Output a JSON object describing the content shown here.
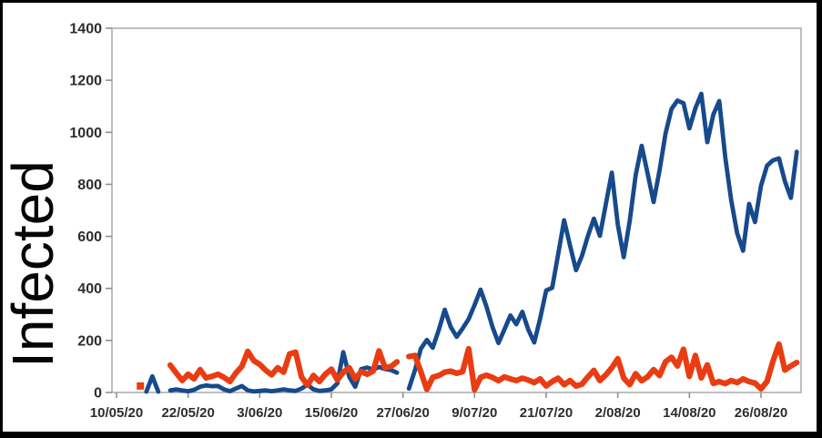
{
  "figure": {
    "background": "#ffffff",
    "border_color": "#000000"
  },
  "chart_data": {
    "type": "line",
    "title": "",
    "xlabel": "",
    "ylabel": "Infected",
    "ylim": [
      0,
      1400
    ],
    "y_ticks": [
      0,
      200,
      400,
      600,
      800,
      1000,
      1200,
      1400
    ],
    "x_tick_labels": [
      "10/05/20",
      "22/05/20",
      "3/06/20",
      "15/06/20",
      "27/06/20",
      "9/07/20",
      "21/07/20",
      "2/08/20",
      "14/08/20",
      "26/08/20"
    ],
    "x_tick_days": [
      0,
      12,
      24,
      36,
      48,
      60,
      72,
      84,
      96,
      108
    ],
    "x_day_range": [
      0,
      115
    ],
    "grid": false,
    "legend_position": "none",
    "style_colors": {
      "frame": "#aeaeae",
      "tick": "#8f8f8f",
      "tick_text": "#2d2d2d"
    },
    "series": [
      {
        "name": "blue-series",
        "color": "#174a8c",
        "stroke_width": 4.8,
        "segments": [
          [
            [
              5,
              3
            ],
            [
              6,
              62
            ],
            [
              7,
              3
            ]
          ],
          [
            [
              9,
              8
            ],
            [
              10,
              12
            ],
            [
              11,
              8
            ],
            [
              12,
              5
            ],
            [
              13,
              10
            ],
            [
              14,
              22
            ],
            [
              15,
              27
            ],
            [
              16,
              24
            ],
            [
              17,
              25
            ],
            [
              18,
              12
            ],
            [
              19,
              5
            ],
            [
              20,
              15
            ],
            [
              21,
              25
            ],
            [
              22,
              8
            ],
            [
              23,
              4
            ],
            [
              24,
              6
            ],
            [
              25,
              8
            ],
            [
              26,
              5
            ],
            [
              27,
              8
            ],
            [
              28,
              12
            ],
            [
              29,
              8
            ],
            [
              30,
              6
            ],
            [
              31,
              15
            ],
            [
              32,
              30
            ],
            [
              33,
              12
            ],
            [
              34,
              6
            ],
            [
              35,
              8
            ],
            [
              36,
              12
            ],
            [
              37,
              35
            ],
            [
              38,
              155
            ],
            [
              39,
              60
            ],
            [
              40,
              22
            ],
            [
              41,
              90
            ],
            [
              42,
              96
            ],
            [
              43,
              88
            ],
            [
              44,
              98
            ],
            [
              45,
              90
            ],
            [
              46,
              86
            ],
            [
              47,
              76
            ]
          ],
          [
            [
              49,
              15
            ],
            [
              50,
              85
            ],
            [
              51,
              168
            ],
            [
              52,
              202
            ],
            [
              53,
              172
            ],
            [
              54,
              240
            ],
            [
              55,
              318
            ],
            [
              56,
              252
            ],
            [
              57,
              214
            ],
            [
              58,
              246
            ],
            [
              59,
              282
            ],
            [
              60,
              336
            ],
            [
              61,
              395
            ],
            [
              62,
              330
            ],
            [
              63,
              252
            ],
            [
              64,
              190
            ],
            [
              65,
              242
            ],
            [
              66,
              296
            ],
            [
              67,
              262
            ],
            [
              68,
              310
            ],
            [
              69,
              242
            ],
            [
              70,
              192
            ],
            [
              71,
              285
            ],
            [
              72,
              392
            ],
            [
              73,
              402
            ],
            [
              74,
              530
            ],
            [
              75,
              662
            ],
            [
              76,
              565
            ],
            [
              77,
              470
            ],
            [
              78,
              525
            ],
            [
              79,
              602
            ],
            [
              80,
              668
            ],
            [
              81,
              602
            ],
            [
              82,
              725
            ],
            [
              83,
              845
            ],
            [
              84,
              645
            ],
            [
              85,
              520
            ],
            [
              86,
              660
            ],
            [
              87,
              835
            ],
            [
              88,
              948
            ],
            [
              89,
              842
            ],
            [
              90,
              732
            ],
            [
              91,
              855
            ],
            [
              92,
              995
            ],
            [
              93,
              1090
            ],
            [
              94,
              1122
            ],
            [
              95,
              1112
            ],
            [
              96,
              1015
            ],
            [
              97,
              1092
            ],
            [
              98,
              1148
            ],
            [
              99,
              962
            ],
            [
              100,
              1068
            ],
            [
              101,
              1120
            ],
            [
              102,
              905
            ],
            [
              103,
              740
            ],
            [
              104,
              612
            ],
            [
              105,
              545
            ],
            [
              106,
              725
            ],
            [
              107,
              655
            ],
            [
              108,
              795
            ],
            [
              109,
              872
            ],
            [
              110,
              892
            ],
            [
              111,
              900
            ],
            [
              112,
              812
            ],
            [
              113,
              748
            ],
            [
              114,
              925
            ]
          ]
        ]
      },
      {
        "name": "orange-series",
        "color": "#ea3c12",
        "stroke_width": 6.2,
        "segments": [
          [
            [
              4,
              25
            ]
          ],
          [
            [
              9,
              105
            ],
            [
              10,
              75
            ],
            [
              11,
              46
            ],
            [
              12,
              70
            ],
            [
              13,
              52
            ],
            [
              14,
              88
            ],
            [
              15,
              56
            ],
            [
              16,
              62
            ],
            [
              17,
              70
            ],
            [
              18,
              58
            ],
            [
              19,
              42
            ],
            [
              20,
              75
            ],
            [
              21,
              100
            ],
            [
              22,
              158
            ],
            [
              23,
              122
            ],
            [
              24,
              108
            ],
            [
              25,
              85
            ],
            [
              26,
              68
            ],
            [
              27,
              95
            ],
            [
              28,
              78
            ],
            [
              29,
              148
            ],
            [
              30,
              155
            ],
            [
              31,
              60
            ],
            [
              32,
              28
            ],
            [
              33,
              65
            ],
            [
              34,
              42
            ],
            [
              35,
              70
            ],
            [
              36,
              90
            ],
            [
              37,
              48
            ],
            [
              38,
              78
            ],
            [
              39,
              95
            ],
            [
              40,
              52
            ],
            [
              41,
              80
            ],
            [
              42,
              70
            ],
            [
              43,
              82
            ],
            [
              44,
              160
            ],
            [
              45,
              95
            ],
            [
              46,
              100
            ],
            [
              47,
              118
            ]
          ],
          [
            [
              49,
              138
            ],
            [
              50,
              142
            ],
            [
              51,
              80
            ],
            [
              52,
              12
            ],
            [
              53,
              58
            ],
            [
              54,
              65
            ],
            [
              55,
              78
            ],
            [
              56,
              82
            ],
            [
              57,
              74
            ],
            [
              58,
              80
            ],
            [
              59,
              168
            ],
            [
              60,
              10
            ],
            [
              61,
              58
            ],
            [
              62,
              66
            ],
            [
              63,
              58
            ],
            [
              64,
              45
            ],
            [
              65,
              60
            ],
            [
              66,
              52
            ],
            [
              67,
              46
            ],
            [
              68,
              55
            ],
            [
              69,
              48
            ],
            [
              70,
              38
            ],
            [
              71,
              52
            ],
            [
              72,
              25
            ],
            [
              73,
              42
            ],
            [
              74,
              55
            ],
            [
              75,
              30
            ],
            [
              76,
              46
            ],
            [
              77,
              25
            ],
            [
              78,
              32
            ],
            [
              79,
              60
            ],
            [
              80,
              85
            ],
            [
              81,
              46
            ],
            [
              82,
              68
            ],
            [
              83,
              95
            ],
            [
              84,
              130
            ],
            [
              85,
              55
            ],
            [
              86,
              30
            ],
            [
              87,
              72
            ],
            [
              88,
              45
            ],
            [
              89,
              60
            ],
            [
              90,
              88
            ],
            [
              91,
              65
            ],
            [
              92,
              118
            ],
            [
              93,
              135
            ],
            [
              94,
              102
            ],
            [
              95,
              166
            ],
            [
              96,
              62
            ],
            [
              97,
              142
            ],
            [
              98,
              56
            ],
            [
              99,
              106
            ],
            [
              100,
              35
            ],
            [
              101,
              42
            ],
            [
              102,
              34
            ],
            [
              103,
              46
            ],
            [
              104,
              38
            ],
            [
              105,
              52
            ],
            [
              106,
              42
            ],
            [
              107,
              36
            ],
            [
              108,
              14
            ],
            [
              109,
              42
            ],
            [
              110,
              120
            ],
            [
              111,
              186
            ],
            [
              112,
              86
            ],
            [
              113,
              102
            ],
            [
              114,
              115
            ]
          ]
        ]
      }
    ]
  }
}
